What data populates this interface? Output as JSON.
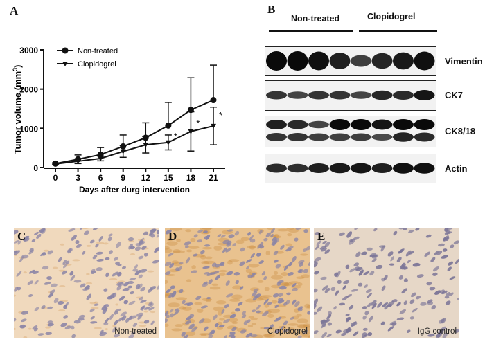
{
  "panels": {
    "a": "A",
    "b": "B",
    "c": "C",
    "d": "D",
    "e": "E"
  },
  "chart_data": {
    "type": "line",
    "xlabel": "Days after durg intervention",
    "ylabel": "Tumor volume (mm",
    "ylabel_sup": "3",
    "ylabel_end": ")",
    "xlim": [
      0,
      21
    ],
    "ylim": [
      0,
      3000
    ],
    "xticks": [
      0,
      3,
      6,
      9,
      12,
      15,
      18,
      21
    ],
    "yticks": [
      0,
      1000,
      2000,
      3000
    ],
    "grid": false,
    "legend": "top-left",
    "x": [
      0,
      3,
      6,
      9,
      12,
      15,
      18,
      21
    ],
    "series": [
      {
        "name": "Non-treated",
        "marker": "circle",
        "values": [
          100,
          210,
          330,
          540,
          760,
          1070,
          1470,
          1720
        ],
        "error": [
          20,
          110,
          180,
          290,
          380,
          590,
          820,
          890
        ]
      },
      {
        "name": "Clopidogrel",
        "marker": "triangle-down",
        "values": [
          90,
          160,
          230,
          410,
          580,
          640,
          920,
          1060
        ],
        "error": [
          20,
          60,
          60,
          150,
          210,
          190,
          500,
          480
        ]
      }
    ],
    "annotations": [
      {
        "x": 15,
        "text": "*"
      },
      {
        "x": 18,
        "text": "*"
      },
      {
        "x": 21,
        "text": "*"
      }
    ]
  },
  "blot": {
    "groups": [
      "Non-treated",
      "Clopidogrel"
    ],
    "rows": [
      "Vimentin",
      "CK7",
      "CK8/18",
      "Actin"
    ]
  },
  "micrographs": [
    {
      "caption": "Non-treated",
      "stain": "light"
    },
    {
      "caption": "Clopidogrel",
      "stain": "strong"
    },
    {
      "caption": "IgG control",
      "stain": "none"
    }
  ]
}
